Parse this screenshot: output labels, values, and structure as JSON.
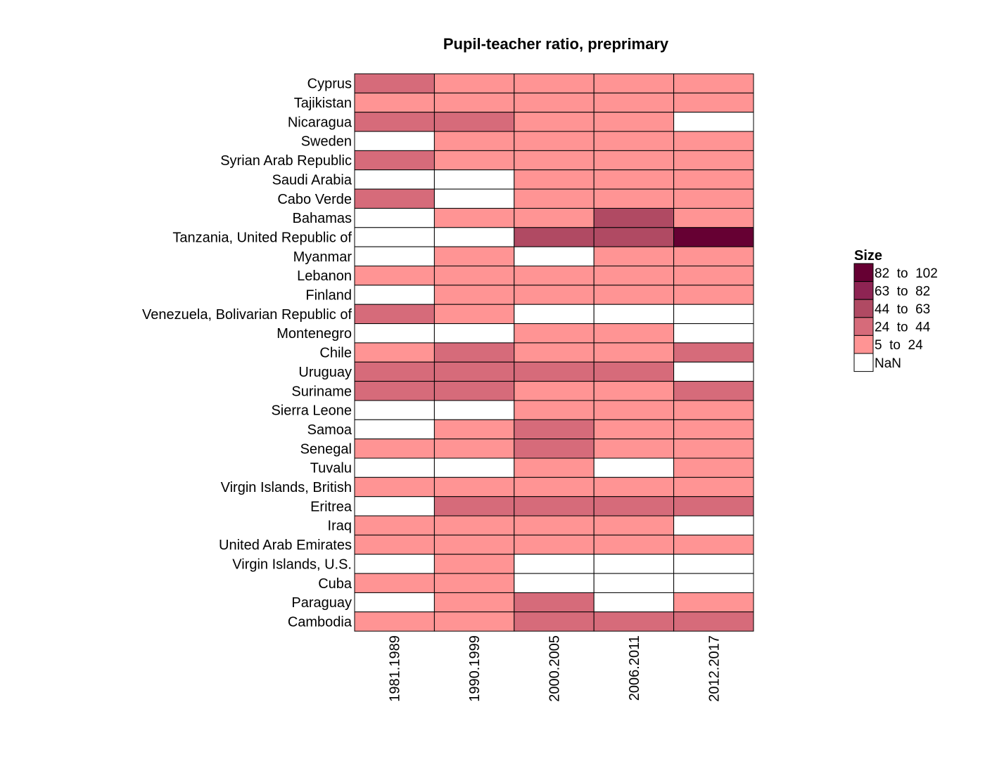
{
  "chart_data": {
    "type": "heatmap",
    "title": "Pupil-teacher ratio, preprimary",
    "columns": [
      "1981.1989",
      "1990.1999",
      "2000.2005",
      "2006.2011",
      "2012.2017"
    ],
    "rows": [
      "Cyprus",
      "Tajikistan",
      "Nicaragua",
      "Sweden",
      "Syrian Arab Republic",
      "Saudi Arabia",
      "Cabo Verde",
      "Bahamas",
      "Tanzania, United Republic of",
      "Myanmar",
      "Lebanon",
      "Finland",
      "Venezuela, Bolivarian Republic of",
      "Montenegro",
      "Chile",
      "Uruguay",
      "Suriname",
      "Sierra Leone",
      "Samoa",
      "Senegal",
      "Tuvalu",
      "Virgin Islands, British",
      "Eritrea",
      "Iraq",
      "United Arab Emirates",
      "Virgin Islands, U.S.",
      "Cuba",
      "Paraguay",
      "Cambodia"
    ],
    "bin_index_note": "Each cell holds the legend bin index: 0 = NaN, 1 = 5 to 24, 2 = 24 to 44, 3 = 44 to 63, 4 = 63 to 82, 5 = 82 to 102",
    "values": [
      [
        2,
        1,
        1,
        1,
        1
      ],
      [
        1,
        1,
        1,
        1,
        1
      ],
      [
        2,
        2,
        1,
        1,
        0
      ],
      [
        0,
        1,
        1,
        1,
        1
      ],
      [
        2,
        1,
        1,
        1,
        1
      ],
      [
        0,
        0,
        1,
        1,
        1
      ],
      [
        2,
        0,
        1,
        1,
        1
      ],
      [
        0,
        1,
        1,
        3,
        1
      ],
      [
        0,
        0,
        3,
        3,
        5
      ],
      [
        0,
        1,
        0,
        1,
        1
      ],
      [
        1,
        1,
        1,
        1,
        1
      ],
      [
        0,
        1,
        1,
        1,
        1
      ],
      [
        2,
        1,
        0,
        0,
        0
      ],
      [
        0,
        0,
        1,
        1,
        0
      ],
      [
        1,
        2,
        1,
        1,
        2
      ],
      [
        2,
        2,
        2,
        2,
        0
      ],
      [
        2,
        2,
        1,
        1,
        2
      ],
      [
        0,
        0,
        1,
        1,
        1
      ],
      [
        0,
        1,
        2,
        1,
        1
      ],
      [
        1,
        1,
        2,
        1,
        1
      ],
      [
        0,
        0,
        1,
        0,
        1
      ],
      [
        1,
        1,
        1,
        1,
        1
      ],
      [
        0,
        2,
        2,
        2,
        2
      ],
      [
        1,
        1,
        1,
        1,
        0
      ],
      [
        1,
        1,
        1,
        1,
        1
      ],
      [
        0,
        1,
        0,
        0,
        0
      ],
      [
        1,
        1,
        0,
        0,
        0
      ],
      [
        0,
        1,
        2,
        0,
        1
      ],
      [
        1,
        1,
        2,
        2,
        2
      ]
    ],
    "legend": {
      "title": "Size",
      "placement": "right",
      "bins": [
        {
          "label": "82  to  102",
          "color": "#660033"
        },
        {
          "label": "63  to  82",
          "color": "#8e2453"
        },
        {
          "label": "44  to  63",
          "color": "#b04a63"
        },
        {
          "label": "24  to  44",
          "color": "#d66b7a"
        },
        {
          "label": "5  to  24",
          "color": "#ff9494"
        },
        {
          "label": "NaN",
          "color": "#ffffff"
        }
      ]
    },
    "bin_colors": [
      "#ffffff",
      "#ff9494",
      "#d66b7a",
      "#b04a63",
      "#8e2453",
      "#660033"
    ]
  }
}
